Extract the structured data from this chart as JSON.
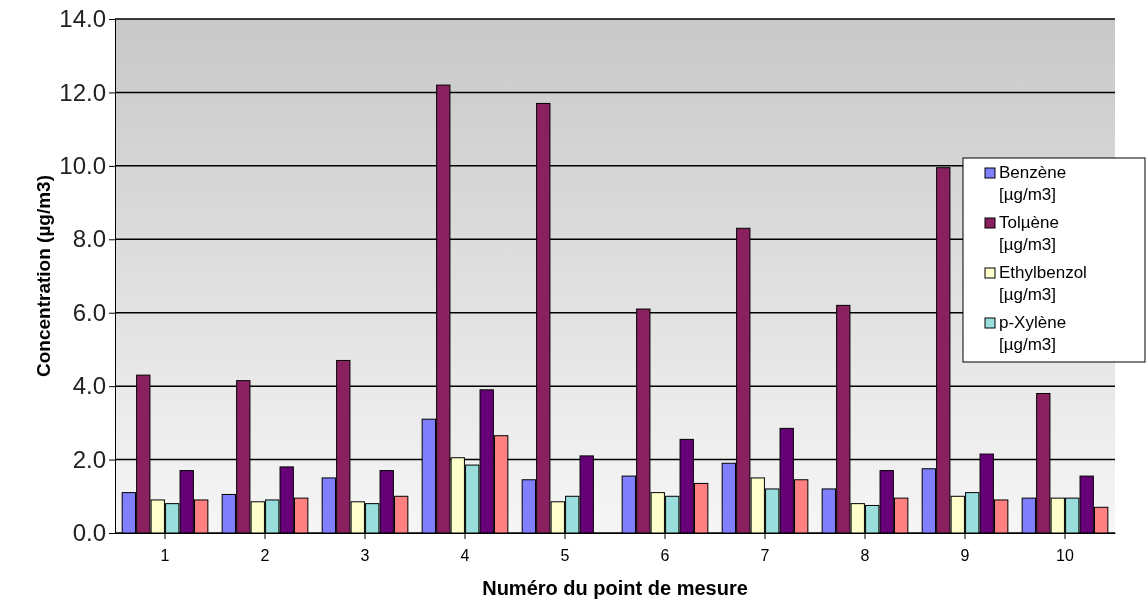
{
  "chart_data": {
    "type": "bar",
    "xlabel": "Numéro du point de mesure",
    "ylabel": "Concentration (µg/m3)",
    "categories": [
      "1",
      "2",
      "3",
      "4",
      "5",
      "6",
      "7",
      "8",
      "9",
      "10"
    ],
    "series": [
      {
        "name": "Benzène [µg/m3]",
        "color": "#8080ff",
        "values": [
          1.1,
          1.05,
          1.5,
          3.1,
          1.45,
          1.55,
          1.9,
          1.2,
          1.75,
          0.95
        ]
      },
      {
        "name": "Tolµène [µg/m3]",
        "color": "#8b2060",
        "values": [
          4.3,
          4.15,
          4.7,
          12.2,
          11.7,
          6.1,
          8.3,
          6.2,
          9.95,
          3.8
        ]
      },
      {
        "name": "Ethylbenzol [µg/m3]",
        "color": "#ffffcc",
        "values": [
          0.9,
          0.85,
          0.85,
          2.05,
          0.85,
          1.1,
          1.5,
          0.8,
          1.0,
          0.95
        ]
      },
      {
        "name": "p-Xylène [µg/m3]",
        "color": "#99dddd",
        "values": [
          0.8,
          0.9,
          0.8,
          1.85,
          1.0,
          1.0,
          1.2,
          0.75,
          1.1,
          0.95
        ]
      },
      {
        "color": "#660077",
        "values": [
          1.7,
          1.8,
          1.7,
          3.9,
          2.1,
          2.55,
          2.85,
          1.7,
          2.15,
          1.55
        ]
      },
      {
        "color": "#ff8080",
        "values": [
          0.9,
          0.95,
          1.0,
          2.65,
          0,
          1.35,
          1.45,
          0.95,
          0.9,
          0.7
        ]
      }
    ],
    "ylim": [
      0,
      14
    ],
    "yticks": [
      {
        "value": 0,
        "label": "0.0"
      },
      {
        "value": 2,
        "label": "2.0"
      },
      {
        "value": 4,
        "label": "4.0"
      },
      {
        "value": 6,
        "label": "6.0"
      },
      {
        "value": 8,
        "label": "8.0"
      },
      {
        "value": 10,
        "label": "10.0"
      },
      {
        "value": 12,
        "label": "12.0"
      },
      {
        "value": 14,
        "label": "14.0"
      }
    ],
    "grid": "y",
    "legend": "right"
  }
}
